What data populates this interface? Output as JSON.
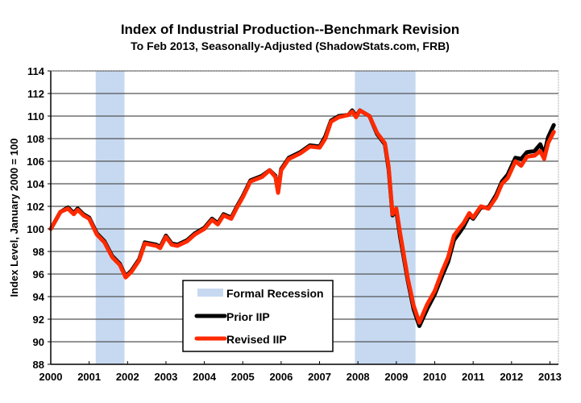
{
  "chart_data": {
    "type": "line",
    "title": "Index of Industrial Production--Benchmark Revision",
    "subtitle": "To Feb 2013, Seasonally-Adjusted (ShadowStats.com, FRB)",
    "xlabel": "",
    "ylabel": "Index Level, January 2000 = 100",
    "xlim": [
      2000,
      2013.25
    ],
    "ylim": [
      88,
      114
    ],
    "grid": true,
    "x_ticks": [
      "2000",
      "2001",
      "2002",
      "2003",
      "2004",
      "2005",
      "2006",
      "2007",
      "2008",
      "2009",
      "2010",
      "2011",
      "2012",
      "2013"
    ],
    "y_ticks": [
      "88",
      "90",
      "92",
      "94",
      "96",
      "98",
      "100",
      "102",
      "104",
      "106",
      "108",
      "110",
      "112",
      "114"
    ],
    "legend_position": "bottom-center",
    "legend": [
      "Formal Recession",
      "Prior IIP",
      "Revised IIP"
    ],
    "recessions": [
      {
        "start": 2001.17,
        "end": 2001.92
      },
      {
        "start": 2007.92,
        "end": 2009.5
      }
    ],
    "series": [
      {
        "name": "Prior IIP",
        "color": "#000000",
        "points": [
          [
            2000.0,
            100.0
          ],
          [
            2000.1,
            100.6
          ],
          [
            2000.25,
            101.5
          ],
          [
            2000.45,
            101.9
          ],
          [
            2000.6,
            101.4
          ],
          [
            2000.7,
            101.8
          ],
          [
            2000.85,
            101.3
          ],
          [
            2001.0,
            101.0
          ],
          [
            2001.2,
            99.6
          ],
          [
            2001.4,
            98.9
          ],
          [
            2001.6,
            97.6
          ],
          [
            2001.8,
            96.9
          ],
          [
            2001.95,
            95.8
          ],
          [
            2002.1,
            96.3
          ],
          [
            2002.3,
            97.3
          ],
          [
            2002.45,
            98.8
          ],
          [
            2002.6,
            98.7
          ],
          [
            2002.75,
            98.6
          ],
          [
            2002.85,
            98.4
          ],
          [
            2003.0,
            99.4
          ],
          [
            2003.15,
            98.7
          ],
          [
            2003.3,
            98.6
          ],
          [
            2003.55,
            99.0
          ],
          [
            2003.75,
            99.6
          ],
          [
            2004.0,
            100.1
          ],
          [
            2004.2,
            100.9
          ],
          [
            2004.35,
            100.5
          ],
          [
            2004.5,
            101.3
          ],
          [
            2004.7,
            101.0
          ],
          [
            2004.85,
            102.0
          ],
          [
            2005.0,
            102.9
          ],
          [
            2005.2,
            104.3
          ],
          [
            2005.5,
            104.7
          ],
          [
            2005.7,
            105.2
          ],
          [
            2005.85,
            104.7
          ],
          [
            2005.92,
            103.3
          ],
          [
            2006.0,
            105.3
          ],
          [
            2006.2,
            106.3
          ],
          [
            2006.5,
            106.8
          ],
          [
            2006.75,
            107.4
          ],
          [
            2007.0,
            107.3
          ],
          [
            2007.15,
            108.2
          ],
          [
            2007.3,
            109.6
          ],
          [
            2007.5,
            110.0
          ],
          [
            2007.75,
            110.1
          ],
          [
            2007.85,
            110.5
          ],
          [
            2007.95,
            110.0
          ],
          [
            2008.05,
            110.5
          ],
          [
            2008.3,
            110.0
          ],
          [
            2008.5,
            108.4
          ],
          [
            2008.7,
            107.5
          ],
          [
            2008.8,
            105.3
          ],
          [
            2008.9,
            101.2
          ],
          [
            2009.0,
            101.6
          ],
          [
            2009.1,
            99.3
          ],
          [
            2009.3,
            95.4
          ],
          [
            2009.45,
            92.9
          ],
          [
            2009.6,
            91.4
          ],
          [
            2009.8,
            92.9
          ],
          [
            2010.0,
            94.2
          ],
          [
            2010.2,
            95.9
          ],
          [
            2010.35,
            97.1
          ],
          [
            2010.5,
            99.0
          ],
          [
            2010.65,
            99.7
          ],
          [
            2010.75,
            100.2
          ],
          [
            2010.9,
            101.2
          ],
          [
            2011.0,
            100.9
          ],
          [
            2011.2,
            101.9
          ],
          [
            2011.4,
            101.9
          ],
          [
            2011.6,
            103.0
          ],
          [
            2011.75,
            104.2
          ],
          [
            2011.9,
            104.8
          ],
          [
            2012.1,
            106.3
          ],
          [
            2012.25,
            106.2
          ],
          [
            2012.4,
            106.8
          ],
          [
            2012.6,
            106.9
          ],
          [
            2012.75,
            107.5
          ],
          [
            2012.85,
            106.6
          ],
          [
            2012.95,
            108.1
          ],
          [
            2013.1,
            109.2
          ]
        ]
      },
      {
        "name": "Revised IIP",
        "color": "#ff2a00",
        "points": [
          [
            2000.0,
            100.0
          ],
          [
            2000.1,
            100.6
          ],
          [
            2000.25,
            101.5
          ],
          [
            2000.45,
            101.8
          ],
          [
            2000.6,
            101.3
          ],
          [
            2000.7,
            101.7
          ],
          [
            2000.85,
            101.2
          ],
          [
            2001.0,
            100.9
          ],
          [
            2001.2,
            99.5
          ],
          [
            2001.4,
            98.8
          ],
          [
            2001.6,
            97.5
          ],
          [
            2001.8,
            96.8
          ],
          [
            2001.95,
            95.7
          ],
          [
            2002.1,
            96.2
          ],
          [
            2002.3,
            97.2
          ],
          [
            2002.45,
            98.7
          ],
          [
            2002.6,
            98.6
          ],
          [
            2002.75,
            98.5
          ],
          [
            2002.85,
            98.3
          ],
          [
            2003.0,
            99.3
          ],
          [
            2003.15,
            98.6
          ],
          [
            2003.3,
            98.5
          ],
          [
            2003.55,
            98.9
          ],
          [
            2003.75,
            99.5
          ],
          [
            2004.0,
            100.0
          ],
          [
            2004.2,
            100.8
          ],
          [
            2004.35,
            100.4
          ],
          [
            2004.5,
            101.2
          ],
          [
            2004.7,
            100.9
          ],
          [
            2004.85,
            101.9
          ],
          [
            2005.0,
            102.8
          ],
          [
            2005.2,
            104.2
          ],
          [
            2005.5,
            104.6
          ],
          [
            2005.7,
            105.2
          ],
          [
            2005.85,
            104.6
          ],
          [
            2005.92,
            103.2
          ],
          [
            2006.0,
            105.2
          ],
          [
            2006.2,
            106.2
          ],
          [
            2006.5,
            106.7
          ],
          [
            2006.75,
            107.3
          ],
          [
            2007.0,
            107.2
          ],
          [
            2007.15,
            108.0
          ],
          [
            2007.3,
            109.5
          ],
          [
            2007.5,
            109.9
          ],
          [
            2007.75,
            110.1
          ],
          [
            2007.85,
            110.4
          ],
          [
            2007.95,
            109.9
          ],
          [
            2008.05,
            110.5
          ],
          [
            2008.3,
            110.0
          ],
          [
            2008.5,
            108.5
          ],
          [
            2008.7,
            107.6
          ],
          [
            2008.8,
            105.5
          ],
          [
            2008.9,
            101.3
          ],
          [
            2009.0,
            101.8
          ],
          [
            2009.1,
            99.6
          ],
          [
            2009.3,
            95.6
          ],
          [
            2009.45,
            93.2
          ],
          [
            2009.6,
            91.7
          ],
          [
            2009.8,
            93.3
          ],
          [
            2010.0,
            94.5
          ],
          [
            2010.2,
            96.3
          ],
          [
            2010.35,
            97.5
          ],
          [
            2010.5,
            99.4
          ],
          [
            2010.65,
            100.1
          ],
          [
            2010.75,
            100.5
          ],
          [
            2010.9,
            101.4
          ],
          [
            2011.0,
            101.0
          ],
          [
            2011.2,
            102.0
          ],
          [
            2011.4,
            101.8
          ],
          [
            2011.6,
            102.8
          ],
          [
            2011.75,
            104.0
          ],
          [
            2011.9,
            104.5
          ],
          [
            2012.1,
            106.0
          ],
          [
            2012.25,
            105.6
          ],
          [
            2012.4,
            106.4
          ],
          [
            2012.6,
            106.5
          ],
          [
            2012.75,
            106.9
          ],
          [
            2012.85,
            106.2
          ],
          [
            2012.95,
            107.6
          ],
          [
            2013.1,
            108.6
          ]
        ]
      }
    ]
  }
}
